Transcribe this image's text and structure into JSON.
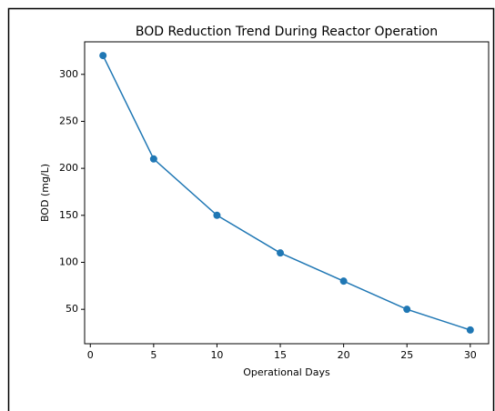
{
  "chart_data": {
    "type": "line",
    "title": "BOD Reduction Trend During Reactor Operation",
    "x_label": "Operational Days",
    "y_label": "BOD (mg/L)",
    "x": [
      1,
      5,
      10,
      15,
      20,
      25,
      30
    ],
    "series": [
      {
        "name": "BOD",
        "color": "#1f77b4",
        "values": [
          320,
          210,
          150,
          110,
          80,
          50,
          28
        ]
      }
    ],
    "xlim": [
      -0.45,
      31.45
    ],
    "xticks": [
      0,
      5,
      10,
      15,
      20,
      25,
      30
    ],
    "ylim": [
      13.4,
      334.6
    ],
    "yticks": [
      50,
      100,
      150,
      200,
      250,
      300
    ],
    "markers": true,
    "grid": false
  }
}
